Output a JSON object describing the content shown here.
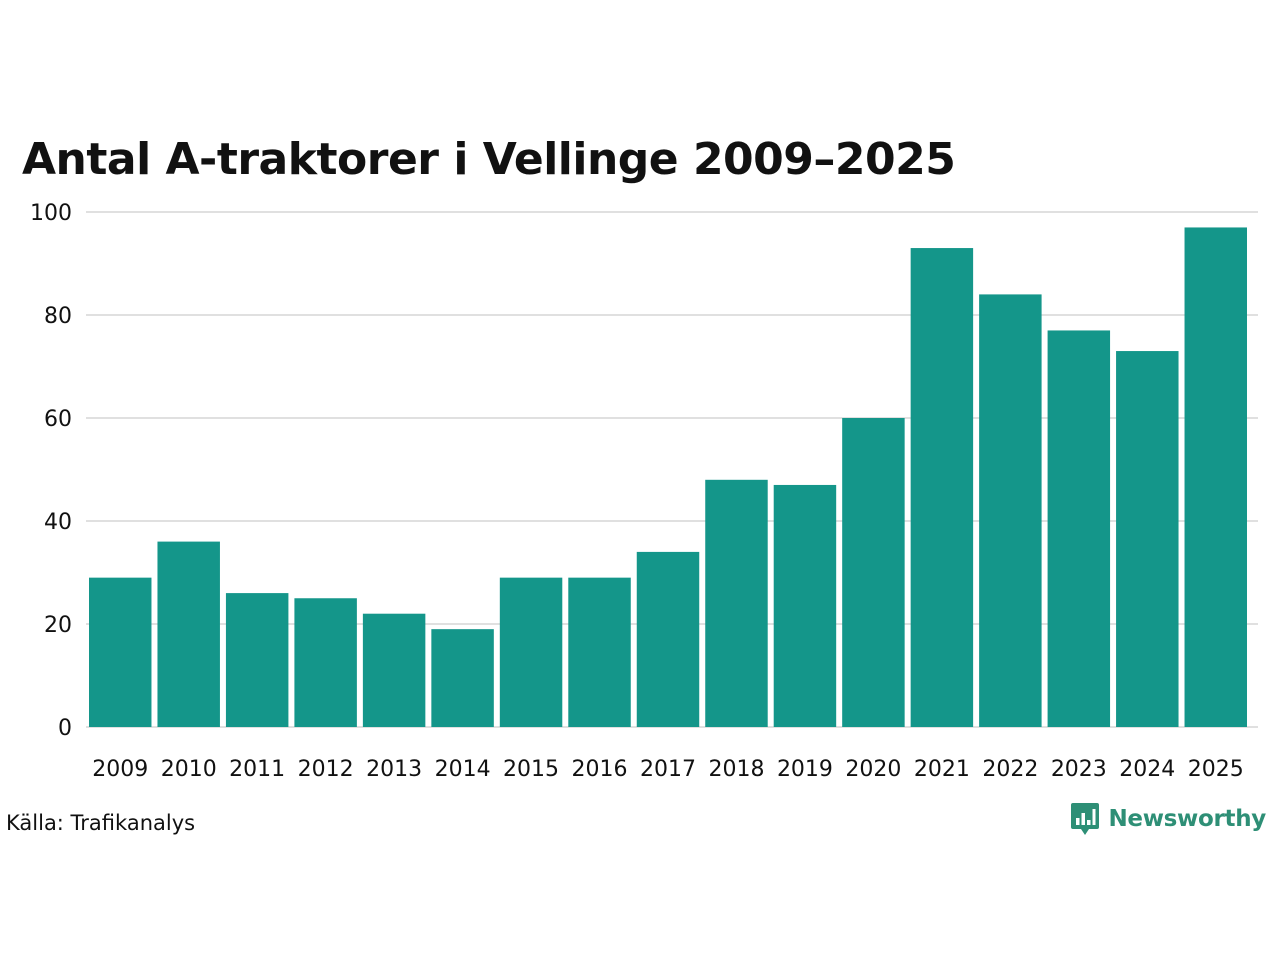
{
  "chart_data": {
    "type": "bar",
    "title": "Antal A-traktorer i Vellinge 2009–2025",
    "categories": [
      "2009",
      "2010",
      "2011",
      "2012",
      "2013",
      "2014",
      "2015",
      "2016",
      "2017",
      "2018",
      "2019",
      "2020",
      "2021",
      "2022",
      "2023",
      "2024",
      "2025"
    ],
    "values": [
      29,
      36,
      26,
      25,
      22,
      19,
      29,
      29,
      34,
      48,
      47,
      60,
      93,
      84,
      77,
      73,
      97
    ],
    "yticks": [
      0,
      20,
      40,
      60,
      80,
      100
    ],
    "ylim": [
      0,
      100
    ],
    "xlabel": "",
    "ylabel": "",
    "grid": true,
    "bar_color": "#14968a",
    "grid_color": "#e0e0e0"
  },
  "source": "Källa: Trafikanalys",
  "brand": {
    "name": "Newsworthy",
    "color": "#2e8f76",
    "icon": "newsworthy-logo-icon"
  }
}
